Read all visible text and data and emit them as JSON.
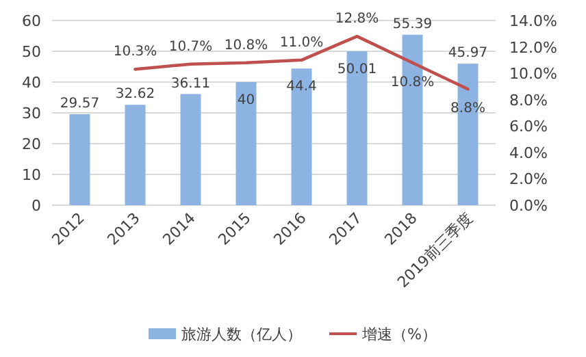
{
  "chart_data": {
    "type": "bar",
    "categories": [
      "2012",
      "2013",
      "2014",
      "2015",
      "2016",
      "2017",
      "2018",
      "2019前三季度"
    ],
    "series": [
      {
        "name": "旅游人数（亿人）",
        "type": "bar",
        "color": "#8db3e2",
        "values": [
          29.57,
          32.62,
          36.11,
          40,
          44.4,
          50.01,
          55.39,
          45.97
        ],
        "value_labels": [
          "29.57",
          "32.62",
          "36.11",
          "40",
          "44.4",
          "50.01",
          "55.39",
          "45.97"
        ]
      },
      {
        "name": "增速（%）",
        "type": "line",
        "axis": "y2",
        "color": "#c0504d",
        "values": [
          null,
          10.3,
          10.7,
          10.8,
          11.0,
          12.8,
          10.8,
          8.8
        ],
        "value_labels": [
          null,
          "10.3%",
          "10.7%",
          "10.8%",
          "11.0%",
          "12.8%",
          "10.8%",
          "8.8%"
        ]
      }
    ],
    "ylim": [
      0,
      60
    ],
    "yticks": [
      0,
      10,
      20,
      30,
      40,
      50,
      60
    ],
    "y2lim": [
      0,
      14
    ],
    "y2ticks": [
      {
        "value": 0,
        "label": "0.0%"
      },
      {
        "value": 2,
        "label": "2.0%"
      },
      {
        "value": 4,
        "label": "4.0%"
      },
      {
        "value": 6,
        "label": "6.0%"
      },
      {
        "value": 8,
        "label": "8.0%"
      },
      {
        "value": 10,
        "label": "10.0%"
      },
      {
        "value": 12,
        "label": "12.0%"
      },
      {
        "value": 14,
        "label": "14.0%"
      }
    ],
    "grid": "y",
    "legend": "bottom",
    "marker": "none",
    "line_style": "solid"
  }
}
